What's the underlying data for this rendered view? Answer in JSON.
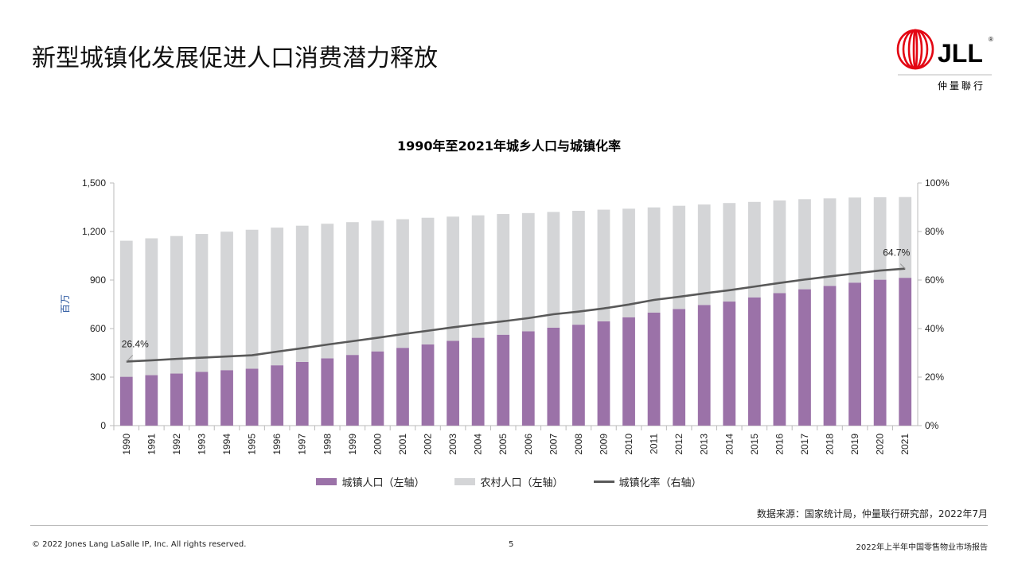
{
  "header": {
    "title": "新型城镇化发展促进人口消费潜力释放",
    "logo_text": "JLL",
    "logo_sub": "仲量聯行"
  },
  "chart_data": {
    "type": "bar",
    "title": "1990年至2021年城乡人口与城镇化率",
    "ylabel": "百万",
    "ylim": [
      0,
      1500
    ],
    "y2lim": [
      0,
      100
    ],
    "yticks": [
      "0",
      "300",
      "600",
      "900",
      "1,200",
      "1,500"
    ],
    "y2ticks": [
      "0%",
      "20%",
      "40%",
      "60%",
      "80%",
      "100%"
    ],
    "stacked": true,
    "categories": [
      "1990",
      "1991",
      "1992",
      "1993",
      "1994",
      "1995",
      "1996",
      "1997",
      "1998",
      "1999",
      "2000",
      "2001",
      "2002",
      "2003",
      "2004",
      "2005",
      "2006",
      "2007",
      "2008",
      "2009",
      "2010",
      "2011",
      "2012",
      "2013",
      "2014",
      "2015",
      "2016",
      "2017",
      "2018",
      "2019",
      "2020",
      "2021"
    ],
    "series": [
      {
        "name": "城镇人口（左轴）",
        "axis": "left",
        "type": "bar",
        "color": "#9b72a8",
        "values": [
          302,
          312,
          322,
          332,
          343,
          352,
          373,
          394,
          416,
          437,
          459,
          481,
          502,
          524,
          543,
          562,
          583,
          606,
          624,
          645,
          670,
          699,
          721,
          746,
          767,
          793,
          819,
          843,
          864,
          884,
          902,
          914
        ]
      },
      {
        "name": "农村人口（左轴）",
        "axis": "left",
        "type": "bar",
        "color": "#d4d5d7",
        "values": [
          841,
          846,
          850,
          853,
          856,
          859,
          851,
          842,
          832,
          821,
          808,
          795,
          783,
          768,
          757,
          746,
          731,
          715,
          704,
          690,
          671,
          650,
          638,
          621,
          609,
          590,
          573,
          557,
          541,
          526,
          510,
          499
        ]
      },
      {
        "name": "城镇化率（右轴）",
        "axis": "right",
        "type": "line",
        "color": "#595959",
        "values": [
          26.4,
          26.9,
          27.5,
          28.0,
          28.5,
          29.0,
          30.5,
          31.9,
          33.4,
          34.8,
          36.2,
          37.7,
          39.1,
          40.5,
          41.8,
          43.0,
          44.3,
          45.9,
          47.0,
          48.3,
          49.9,
          51.8,
          53.1,
          54.5,
          55.8,
          57.3,
          58.8,
          60.2,
          61.5,
          62.7,
          63.9,
          64.7
        ]
      }
    ],
    "annotations": [
      "26.4%",
      "64.7%"
    ],
    "legend": "bottom",
    "grid": false
  },
  "source": "数据来源：国家统计局，仲量联行研究部，2022年7月",
  "footer": {
    "copyright": "© 2022 Jones Lang LaSalle IP, Inc. All rights reserved.",
    "page": "5",
    "report": "2022年上半年中国零售物业市场报告"
  }
}
